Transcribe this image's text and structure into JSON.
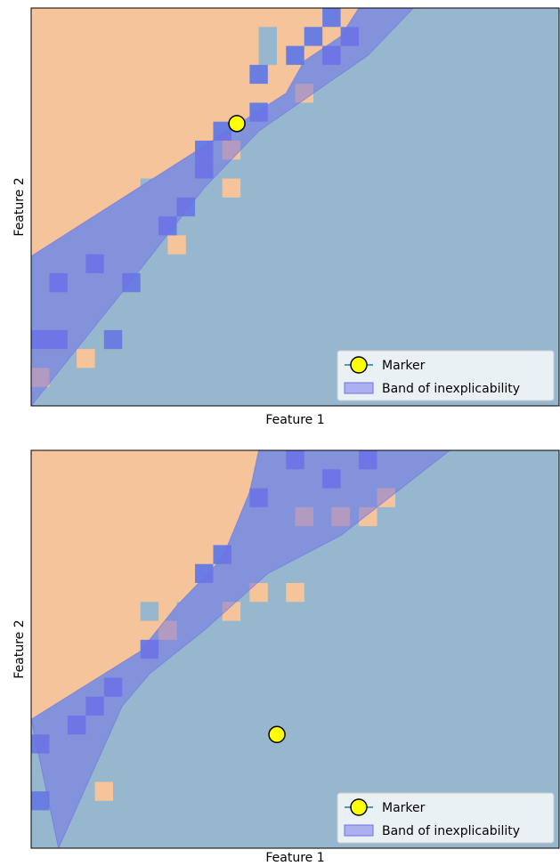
{
  "colors": {
    "region_a": "#f6c49a",
    "region_b": "#97b7ce",
    "band": "#6f70e8",
    "patch_a": "#f6c49a",
    "patch_b": "#97b7ce",
    "patch_band": "#6a7de0",
    "marker_face": "#ffff00",
    "marker_edge": "#000000",
    "legend_line": "#1f77b4"
  },
  "chart_data": [
    {
      "type": "scatter",
      "xlabel": "Feature 1",
      "ylabel": "Feature 2",
      "xlim": [
        0,
        29
      ],
      "ylim": [
        0,
        21
      ],
      "grid": false,
      "legend": {
        "placement": "bottom-right",
        "entries": [
          "Marker",
          "Band of inexplicability"
        ]
      },
      "boundary": [
        [
          0,
          7.9
        ],
        [
          8.5,
          13.1
        ],
        [
          14,
          16.5
        ],
        [
          15,
          18.2
        ],
        [
          17,
          19.5
        ],
        [
          18,
          21
        ]
      ],
      "band": {
        "upper": [
          [
            0,
            7.9
          ],
          [
            8.5,
            13.1
          ],
          [
            14,
            16.5
          ],
          [
            15,
            18.2
          ],
          [
            17,
            19.5
          ],
          [
            18,
            21
          ],
          [
            21,
            21
          ]
        ],
        "lower": [
          [
            0,
            0
          ],
          [
            5.5,
            6.6
          ],
          [
            9.5,
            11.5
          ],
          [
            12.5,
            14.5
          ],
          [
            18.5,
            18.5
          ],
          [
            21,
            21
          ]
        ]
      },
      "series": [
        {
          "name": "Marker",
          "x": [
            11.3
          ],
          "y": [
            14.9
          ]
        }
      ],
      "patches": [
        {
          "c": "a",
          "x": 0.5,
          "y": 1.5
        },
        {
          "c": "a",
          "x": 3,
          "y": 2.5
        },
        {
          "c": "a",
          "x": 8,
          "y": 8.5
        },
        {
          "c": "a",
          "x": 11,
          "y": 11.5
        },
        {
          "c": "a",
          "x": 11,
          "y": 13.5
        },
        {
          "c": "a",
          "x": 15,
          "y": 16.5
        },
        {
          "c": "b",
          "x": 6.5,
          "y": 11.5
        },
        {
          "c": "b",
          "x": 7.5,
          "y": 11.5
        },
        {
          "c": "b",
          "x": 13,
          "y": 18.5
        },
        {
          "c": "b",
          "x": 13,
          "y": 19.5
        },
        {
          "c": "p",
          "x": 1.5,
          "y": 6.5
        },
        {
          "c": "p",
          "x": 3.5,
          "y": 7.5
        },
        {
          "c": "p",
          "x": 0.5,
          "y": 3.5
        },
        {
          "c": "p",
          "x": 1.5,
          "y": 3.5
        },
        {
          "c": "p",
          "x": 9.5,
          "y": 12.5
        },
        {
          "c": "p",
          "x": 8.5,
          "y": 10.5
        },
        {
          "c": "p",
          "x": 12.5,
          "y": 17.5
        },
        {
          "c": "p",
          "x": 14.5,
          "y": 18.5
        },
        {
          "c": "p",
          "x": 15.5,
          "y": 19.5
        },
        {
          "c": "p",
          "x": 16.5,
          "y": 20.5
        },
        {
          "c": "p",
          "x": 4.5,
          "y": 3.5
        },
        {
          "c": "p",
          "x": 5.5,
          "y": 6.5
        },
        {
          "c": "p",
          "x": 7.5,
          "y": 9.5
        },
        {
          "c": "p",
          "x": 9.5,
          "y": 13.5
        },
        {
          "c": "p",
          "x": 10.5,
          "y": 14.5
        },
        {
          "c": "p",
          "x": 12.5,
          "y": 15.5
        },
        {
          "c": "p",
          "x": 16.5,
          "y": 18.5
        },
        {
          "c": "p",
          "x": 17.5,
          "y": 19.5
        }
      ]
    },
    {
      "type": "scatter",
      "xlabel": "Feature 1",
      "ylabel": "Feature 2",
      "xlim": [
        0,
        29
      ],
      "ylim": [
        0,
        21
      ],
      "grid": false,
      "legend": {
        "placement": "bottom-right",
        "entries": [
          "Marker",
          "Band of inexplicability"
        ]
      },
      "boundary": [
        [
          0,
          6.8
        ],
        [
          6,
          10.4
        ],
        [
          8,
          12.8
        ],
        [
          10.5,
          15.3
        ],
        [
          12,
          18.8
        ],
        [
          12.5,
          21
        ]
      ],
      "band": {
        "upper": [
          [
            0,
            6.8
          ],
          [
            6,
            10.4
          ],
          [
            8,
            12.8
          ],
          [
            10.5,
            15.3
          ],
          [
            12,
            18.8
          ],
          [
            12.5,
            21
          ],
          [
            23,
            21
          ]
        ],
        "lower": [
          [
            1.5,
            0
          ],
          [
            5,
            7.5
          ],
          [
            6.5,
            9.2
          ],
          [
            9.5,
            11.5
          ],
          [
            13,
            14.5
          ],
          [
            17,
            16.5
          ],
          [
            23,
            21
          ]
        ]
      },
      "series": [
        {
          "name": "Marker",
          "x": [
            13.5
          ],
          "y": [
            6.0
          ]
        }
      ],
      "patches": [
        {
          "c": "a",
          "x": 4,
          "y": 3
        },
        {
          "c": "a",
          "x": 7.5,
          "y": 11.5
        },
        {
          "c": "a",
          "x": 11,
          "y": 12.5
        },
        {
          "c": "a",
          "x": 12.5,
          "y": 13.5
        },
        {
          "c": "a",
          "x": 14.5,
          "y": 13.5
        },
        {
          "c": "a",
          "x": 15,
          "y": 17.5
        },
        {
          "c": "a",
          "x": 17,
          "y": 17.5
        },
        {
          "c": "a",
          "x": 18.5,
          "y": 17.5
        },
        {
          "c": "a",
          "x": 19.5,
          "y": 18.5
        },
        {
          "c": "b",
          "x": 6.5,
          "y": 12.5
        },
        {
          "c": "b",
          "x": 8.5,
          "y": 12.5
        },
        {
          "c": "p",
          "x": 0.5,
          "y": 5.5
        },
        {
          "c": "p",
          "x": 0.5,
          "y": 2.5
        },
        {
          "c": "p",
          "x": 2.5,
          "y": 6.5
        },
        {
          "c": "p",
          "x": 14.5,
          "y": 20.5
        },
        {
          "c": "p",
          "x": 12.5,
          "y": 18.5
        },
        {
          "c": "p",
          "x": 9.5,
          "y": 14.5
        },
        {
          "c": "p",
          "x": 10.5,
          "y": 15.5
        },
        {
          "c": "p",
          "x": 16.5,
          "y": 19.5
        },
        {
          "c": "p",
          "x": 18.5,
          "y": 20.5
        },
        {
          "c": "p",
          "x": 3.5,
          "y": 7.5
        },
        {
          "c": "p",
          "x": 4.5,
          "y": 8.5
        },
        {
          "c": "p",
          "x": 6.5,
          "y": 10.5
        }
      ]
    }
  ]
}
